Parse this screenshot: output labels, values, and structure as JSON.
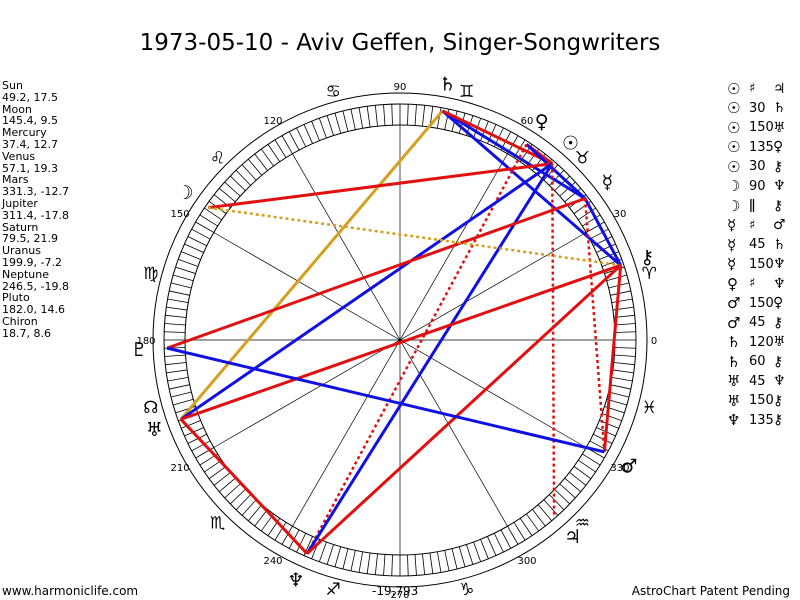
{
  "title": "1973-05-10 - Aviv Geffen, Singer-Songwriters",
  "positions": [
    {
      "name": "Sun",
      "value": "49.2, 17.5"
    },
    {
      "name": "Moon",
      "value": "145.4, 9.5"
    },
    {
      "name": "Mercury",
      "value": "37.4, 12.7"
    },
    {
      "name": "Venus",
      "value": "57.1, 19.3"
    },
    {
      "name": "Mars",
      "value": "331.3, -12.7"
    },
    {
      "name": "Jupiter",
      "value": "311.4, -17.8"
    },
    {
      "name": "Saturn",
      "value": "79.5, 21.9"
    },
    {
      "name": "Uranus",
      "value": "199.9, -7.2"
    },
    {
      "name": "Neptune",
      "value": "246.5, -19.8"
    },
    {
      "name": "Pluto",
      "value": "182.0, 14.6"
    },
    {
      "name": "Chiron",
      "value": "18.7, 8.6"
    }
  ],
  "aspects": [
    {
      "p1": "☉",
      "sym": "♯",
      "p2": "♃"
    },
    {
      "p1": "☉",
      "sym": "30",
      "p2": "♄"
    },
    {
      "p1": "☉",
      "sym": "150",
      "p2": "♅"
    },
    {
      "p1": "☉",
      "sym": "135",
      "p2": "♀"
    },
    {
      "p1": "☉",
      "sym": "30",
      "p2": "⚷"
    },
    {
      "p1": "☽",
      "sym": "90",
      "p2": "♆"
    },
    {
      "p1": "☽",
      "sym": "ǁ",
      "p2": "⚷"
    },
    {
      "p1": "☿",
      "sym": "♯",
      "p2": "♂"
    },
    {
      "p1": "☿",
      "sym": "45",
      "p2": "♄"
    },
    {
      "p1": "☿",
      "sym": "150",
      "p2": "♆"
    },
    {
      "p1": "♀",
      "sym": "♯",
      "p2": "♆"
    },
    {
      "p1": "♂",
      "sym": "150",
      "p2": "♀"
    },
    {
      "p1": "♂",
      "sym": "45",
      "p2": "⚷"
    },
    {
      "p1": "♄",
      "sym": "120",
      "p2": "♅"
    },
    {
      "p1": "♄",
      "sym": "60",
      "p2": "⚷"
    },
    {
      "p1": "♅",
      "sym": "45",
      "p2": "♆"
    },
    {
      "p1": "♅",
      "sym": "150",
      "p2": "⚷"
    },
    {
      "p1": "♆",
      "sym": "135",
      "p2": "⚷"
    }
  ],
  "wheel": {
    "degree_labels": [
      "0",
      "30",
      "60",
      "90",
      "120",
      "150",
      "180",
      "210",
      "240",
      "270",
      "300",
      "330"
    ],
    "planets": [
      {
        "glyph": "♄",
        "name": "saturn",
        "lon": 79.5
      },
      {
        "glyph": "♀",
        "name": "venus",
        "lon": 57.1
      },
      {
        "glyph": "☉",
        "name": "sun",
        "lon": 49.2
      },
      {
        "glyph": "☿",
        "name": "mercury",
        "lon": 37.4
      },
      {
        "glyph": "⚷",
        "name": "chiron",
        "lon": 18.7
      },
      {
        "glyph": "☽",
        "name": "moon",
        "lon": 145.4
      },
      {
        "glyph": "♇",
        "name": "pluto",
        "lon": 182.0
      },
      {
        "glyph": "♅",
        "name": "uranus",
        "lon": 199.9
      },
      {
        "glyph": "♆",
        "name": "neptune",
        "lon": 246.5
      },
      {
        "glyph": "♃",
        "name": "jupiter",
        "lon": 311.4
      },
      {
        "glyph": "♂",
        "name": "mars",
        "lon": 331.3
      }
    ],
    "signs": [
      {
        "glyph": "♈",
        "name": "aries",
        "lon": 15
      },
      {
        "glyph": "♉",
        "name": "taurus",
        "lon": 45
      },
      {
        "glyph": "♊",
        "name": "gemini",
        "lon": 75
      },
      {
        "glyph": "♋",
        "name": "cancer",
        "lon": 105
      },
      {
        "glyph": "♌",
        "name": "leo",
        "lon": 135
      },
      {
        "glyph": "♍",
        "name": "virgo",
        "lon": 165
      },
      {
        "glyph": "☊",
        "name": "north-node",
        "lon": 195
      },
      {
        "glyph": "♏",
        "name": "scorpio",
        "lon": 225
      },
      {
        "glyph": "♐",
        "name": "sagittarius",
        "lon": 255
      },
      {
        "glyph": "♑",
        "name": "capricorn",
        "lon": 285
      },
      {
        "glyph": "♒",
        "name": "aquarius",
        "lon": 315
      },
      {
        "glyph": "♓",
        "name": "pisces",
        "lon": 345
      }
    ],
    "aspect_lines": [
      {
        "a": "saturn",
        "b": "uranus",
        "color": "#d4a020",
        "style": "solid"
      },
      {
        "a": "saturn",
        "b": "mercury",
        "color": "#1010e0",
        "style": "solid"
      },
      {
        "a": "saturn",
        "b": "chiron",
        "color": "#1010e0",
        "style": "solid"
      },
      {
        "a": "saturn",
        "b": "sun",
        "color": "#e01010",
        "style": "solid"
      },
      {
        "a": "venus",
        "b": "sun",
        "color": "#e01010",
        "style": "solid"
      },
      {
        "a": "venus",
        "b": "mercury",
        "color": "#1010e0",
        "style": "solid"
      },
      {
        "a": "venus",
        "b": "neptune",
        "color": "#e01010",
        "style": "dotted"
      },
      {
        "a": "sun",
        "b": "moon",
        "color": "#e01010",
        "style": "solid"
      },
      {
        "a": "sun",
        "b": "uranus",
        "color": "#1010e0",
        "style": "solid"
      },
      {
        "a": "sun",
        "b": "neptune",
        "color": "#1010e0",
        "style": "solid"
      },
      {
        "a": "sun",
        "b": "jupiter",
        "color": "#e01010",
        "style": "dotted"
      },
      {
        "a": "mercury",
        "b": "chiron",
        "color": "#1010e0",
        "style": "solid"
      },
      {
        "a": "mercury",
        "b": "pluto",
        "color": "#e01010",
        "style": "solid"
      },
      {
        "a": "mercury",
        "b": "mars",
        "color": "#e01010",
        "style": "dotted"
      },
      {
        "a": "moon",
        "b": "chiron",
        "color": "#d4a020",
        "style": "dotted"
      },
      {
        "a": "chiron",
        "b": "uranus",
        "color": "#e01010",
        "style": "solid"
      },
      {
        "a": "chiron",
        "b": "neptune",
        "color": "#e01010",
        "style": "solid"
      },
      {
        "a": "chiron",
        "b": "mars",
        "color": "#e01010",
        "style": "solid"
      },
      {
        "a": "pluto",
        "b": "mars",
        "color": "#1010e0",
        "style": "solid"
      },
      {
        "a": "uranus",
        "b": "neptune",
        "color": "#e01010",
        "style": "solid"
      }
    ]
  },
  "footer": {
    "site": "www.harmoniclife.com",
    "code": "-19,793",
    "notice": "AstroChart Patent Pending"
  }
}
